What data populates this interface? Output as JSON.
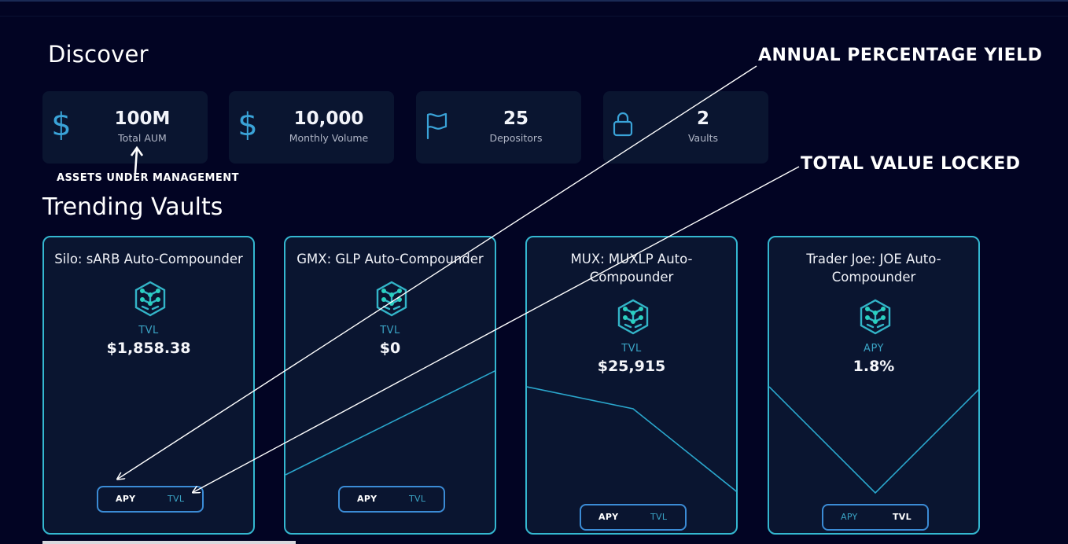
{
  "page": {
    "title": "Discover",
    "section_title": "Trending Vaults"
  },
  "stats": [
    {
      "icon": "dollar-icon",
      "value": "100M",
      "label": "Total AUM"
    },
    {
      "icon": "dollar-icon",
      "value": "10,000",
      "label": "Monthly Volume"
    },
    {
      "icon": "flag-icon",
      "value": "25",
      "label": "Depositors"
    },
    {
      "icon": "lock-icon",
      "value": "2",
      "label": "Vaults"
    }
  ],
  "vaults": [
    {
      "title": "Silo: sARB Auto-Compounder",
      "metric_label": "TVL",
      "metric_value": "$1,858.38",
      "toggle": {
        "apy": "APY",
        "tvl": "TVL",
        "active": "APY"
      }
    },
    {
      "title": "GMX: GLP Auto-Compounder",
      "metric_label": "TVL",
      "metric_value": "$0",
      "toggle": {
        "apy": "APY",
        "tvl": "TVL",
        "active": "APY"
      }
    },
    {
      "title": "MUX: MUXLP Auto-Compounder",
      "metric_label": "TVL",
      "metric_value": "$25,915",
      "toggle": {
        "apy": "APY",
        "tvl": "TVL",
        "active": "APY"
      }
    },
    {
      "title": "Trader Joe: JOE Auto-Compounder",
      "metric_label": "APY",
      "metric_value": "1.8%",
      "toggle": {
        "apy": "APY",
        "tvl": "TVL",
        "active": "TVL"
      }
    }
  ],
  "annotations": {
    "apy": "ANNUAL PERCENTAGE YIELD",
    "tvl": "TOTAL VALUE LOCKED",
    "aum": "ASSETS UNDER MANAGEMENT"
  },
  "colors": {
    "background": "#020423",
    "card": "#0a1530",
    "accent": "#2fc4c6",
    "muted": "#3aa3c4"
  }
}
